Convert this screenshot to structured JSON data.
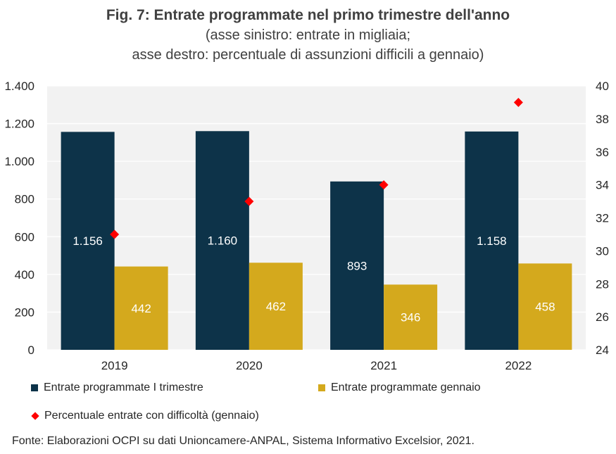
{
  "title": "Fig. 7: Entrate programmate nel primo trimestre dell'anno",
  "subtitle_lines": [
    "(asse sinistro: entrate in migliaia;",
    "asse destro: percentuale di assunzioni difficili a gennaio)"
  ],
  "source": "Fonte: Elaborazioni OCPI su dati Unioncamere-ANPAL, Sistema Informativo Excelsior, 2021.",
  "colors": {
    "primary_bar": "#0d3349",
    "secondary_bar": "#d4a91d",
    "marker": "#ff0000",
    "plot_background": "#f2f2f2",
    "gridline": "#ffffff"
  },
  "chart_data": {
    "type": "bar",
    "categories": [
      "2019",
      "2020",
      "2021",
      "2022"
    ],
    "series": [
      {
        "name": "Entrate programmate I trimestre",
        "values": [
          1156,
          1160,
          893,
          1158
        ],
        "labels": [
          "1.156",
          "1.160",
          "893",
          "1.158"
        ],
        "axis": "left",
        "kind": "bar"
      },
      {
        "name": "Entrate programmate gennaio",
        "values": [
          442,
          462,
          346,
          458
        ],
        "labels": [
          "442",
          "462",
          "346",
          "458"
        ],
        "axis": "left",
        "kind": "bar"
      },
      {
        "name": "Percentuale entrate con difficoltà (gennaio)",
        "values": [
          31,
          33,
          34,
          39
        ],
        "axis": "right",
        "kind": "scatter",
        "marker": "diamond"
      }
    ],
    "left_axis": {
      "ylim": [
        0,
        1400
      ],
      "ticks": [
        0,
        200,
        400,
        600,
        800,
        1000,
        1200,
        1400
      ],
      "tick_labels": [
        "0",
        "200",
        "400",
        "600",
        "800",
        "1.000",
        "1.200",
        "1.400"
      ]
    },
    "right_axis": {
      "ylim": [
        24,
        40
      ],
      "ticks": [
        24,
        26,
        28,
        30,
        32,
        34,
        36,
        38,
        40
      ],
      "tick_labels": [
        "24",
        "26",
        "28",
        "30",
        "32",
        "34",
        "36",
        "38",
        "40"
      ]
    },
    "grid": true,
    "legend_position": "bottom"
  }
}
